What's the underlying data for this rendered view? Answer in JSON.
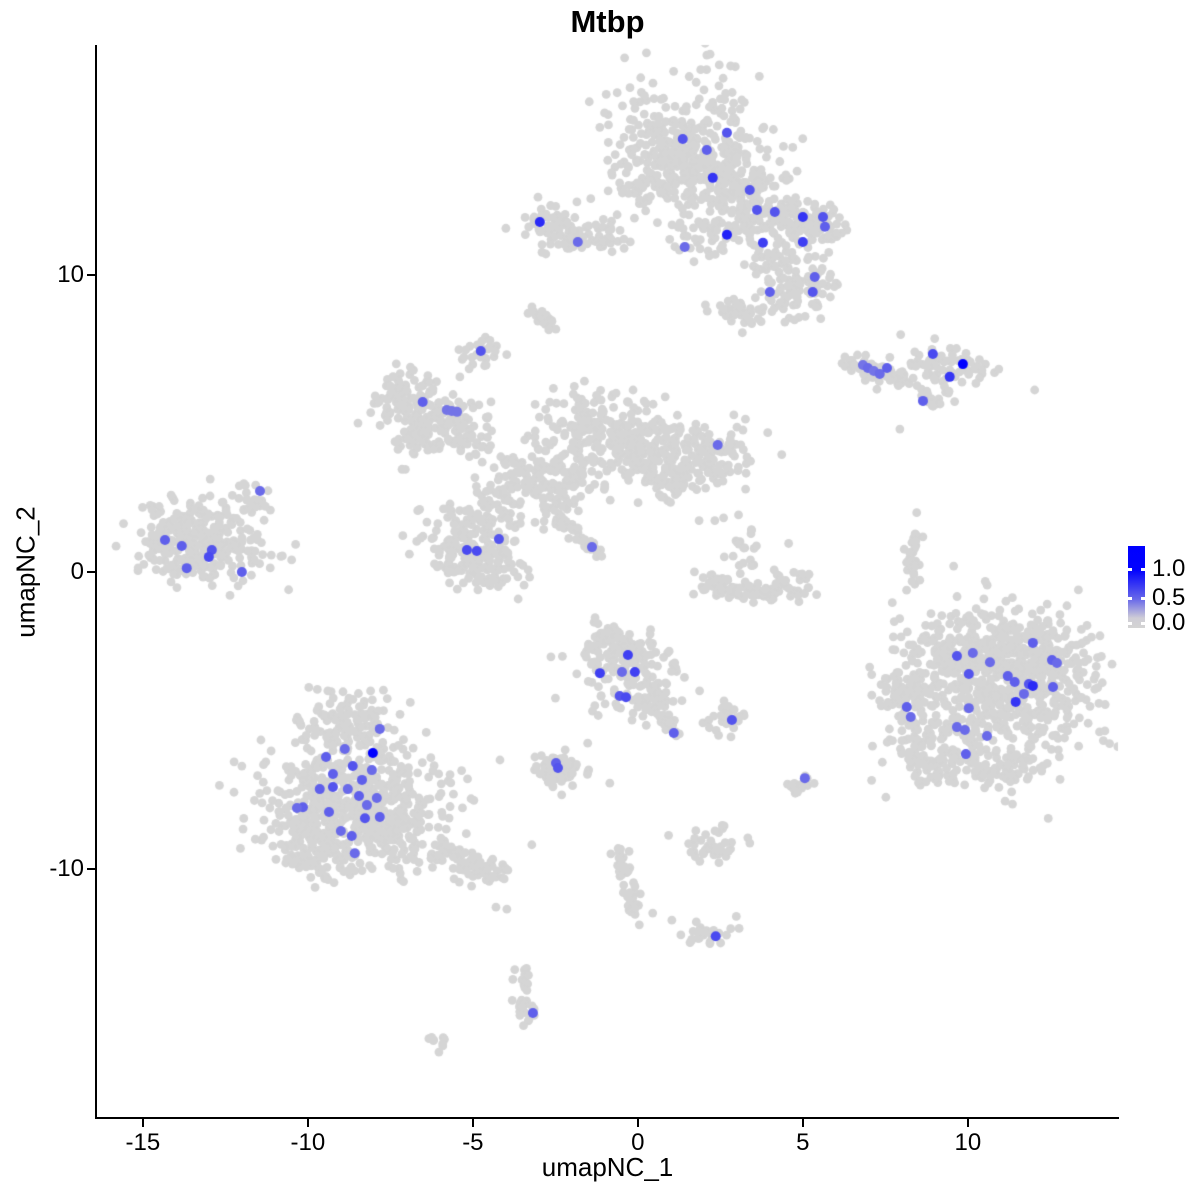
{
  "chart_data": {
    "type": "scatter",
    "title": "Mtbp",
    "xlabel": "umapNC_1",
    "ylabel": "umapNC_2",
    "xlim": [
      -16.39,
      14.55
    ],
    "ylim": [
      -18.41,
      17.77
    ],
    "xticks": [
      -15,
      -10,
      -5,
      0,
      5,
      10
    ],
    "yticks": [
      10,
      0,
      -10
    ],
    "grid": false,
    "legend": {
      "labels": [
        "1.0",
        "0.5",
        "0.0"
      ],
      "position": "right"
    },
    "colors": {
      "low": "#d3d3d3",
      "high": "#0000ff",
      "point_gray": "#d5d5d5"
    },
    "clusters": [
      {
        "name": "top-center",
        "blobs": [
          [
            "g",
            1.52,
            14.4,
            1.15,
            1.25,
            330
          ],
          [
            "g",
            0.55,
            13.25,
            0.55,
            0.5,
            60
          ],
          [
            "g",
            2.6,
            13.3,
            0.75,
            0.65,
            120
          ],
          [
            "g",
            1.95,
            11.4,
            0.5,
            0.35,
            40
          ],
          [
            "g",
            3.75,
            12.15,
            0.65,
            0.45,
            70
          ],
          [
            "g",
            4.9,
            11.9,
            0.55,
            0.45,
            70
          ],
          [
            "g",
            5.75,
            11.65,
            0.35,
            0.3,
            30
          ],
          [
            "g",
            4.15,
            10.45,
            0.5,
            0.45,
            55
          ],
          [
            "g",
            5.2,
            9.75,
            0.45,
            0.4,
            45
          ],
          [
            "g",
            4.6,
            9.15,
            0.4,
            0.35,
            35
          ],
          [
            "g",
            3.25,
            8.75,
            0.4,
            0.3,
            40
          ]
        ]
      },
      {
        "name": "top-left-small",
        "blobs": [
          [
            "g",
            -2.6,
            11.8,
            0.45,
            0.35,
            55
          ],
          [
            "g",
            -1.55,
            11.3,
            0.55,
            0.3,
            45
          ],
          [
            "g",
            -0.9,
            11.15,
            0.25,
            0.18,
            12
          ]
        ]
      },
      {
        "name": "comma-small",
        "blobs": [
          [
            "s",
            -2.88,
            8.55,
            0.28,
            -0.22,
            0.12,
            22
          ]
        ]
      },
      {
        "name": "tiny-left",
        "blobs": [
          [
            "g",
            -4.72,
            7.4,
            0.28,
            0.26,
            26
          ]
        ]
      },
      {
        "name": "mid-left",
        "blobs": [
          [
            "g",
            -6.95,
            5.8,
            0.55,
            0.5,
            85
          ],
          [
            "g",
            -5.9,
            5.15,
            0.65,
            0.5,
            100
          ],
          [
            "g",
            -6.6,
            4.5,
            0.4,
            0.35,
            35
          ],
          [
            "g",
            -5.15,
            4.35,
            0.3,
            0.25,
            18
          ]
        ]
      },
      {
        "name": "central-web",
        "blobs": [
          [
            "g",
            -1.15,
            4.95,
            0.85,
            0.7,
            150
          ],
          [
            "g",
            0.05,
            4.1,
            0.75,
            0.6,
            130
          ],
          [
            "g",
            1.9,
            3.95,
            0.8,
            0.55,
            125
          ],
          [
            "g",
            1.0,
            3.1,
            0.5,
            0.45,
            55
          ],
          [
            "g",
            -2.8,
            3.45,
            0.6,
            0.5,
            65
          ],
          [
            "g",
            -3.9,
            2.6,
            0.55,
            0.5,
            65
          ],
          [
            "g",
            -5.25,
            1.1,
            0.7,
            0.72,
            160
          ],
          [
            "g",
            -4.35,
            0.1,
            0.5,
            0.45,
            65
          ],
          [
            "g",
            -2.5,
            2.45,
            0.4,
            0.4,
            35
          ],
          [
            "g",
            -1.7,
            3.4,
            0.5,
            0.45,
            35
          ]
        ]
      },
      {
        "name": "diag-streak",
        "blobs": [
          [
            "s",
            -1.82,
            1.22,
            0.62,
            -0.58,
            0.1,
            40
          ]
        ]
      },
      {
        "name": "far-left",
        "blobs": [
          [
            "g",
            -13.4,
            1.6,
            0.85,
            0.55,
            110
          ],
          [
            "g",
            -12.55,
            0.6,
            0.95,
            0.5,
            120
          ],
          [
            "g",
            -13.75,
            0.4,
            0.5,
            0.4,
            45
          ],
          [
            "g",
            -11.65,
            2.4,
            0.38,
            0.32,
            25
          ],
          [
            "g",
            -14.45,
            0.9,
            0.33,
            0.3,
            22
          ]
        ]
      },
      {
        "name": "curl",
        "blobs": [
          [
            "g",
            2.35,
            -0.45,
            0.33,
            0.22,
            30
          ],
          [
            "s",
            3.55,
            -0.68,
            0.6,
            -0.1,
            0.15,
            40
          ],
          [
            "g",
            4.75,
            -0.42,
            0.33,
            0.25,
            28
          ],
          [
            "g",
            3.25,
            0.9,
            0.45,
            0.6,
            26
          ]
        ]
      },
      {
        "name": "right-sliver",
        "blobs": [
          [
            "s",
            8.3,
            0.45,
            0.05,
            1.05,
            0.1,
            32
          ]
        ]
      },
      {
        "name": "right-mid",
        "blobs": [
          [
            "s",
            7.2,
            6.8,
            0.85,
            -0.3,
            0.14,
            55
          ],
          [
            "g",
            9.15,
            6.85,
            0.85,
            0.38,
            85
          ],
          [
            "s",
            8.8,
            5.9,
            0.3,
            -0.28,
            0.1,
            18
          ]
        ]
      },
      {
        "name": "big-right",
        "blobs": [
          [
            "g",
            10.95,
            -4.0,
            1.5,
            1.45,
            520
          ],
          [
            "g",
            12.15,
            -2.95,
            0.95,
            0.85,
            180
          ],
          [
            "g",
            9.75,
            -2.65,
            0.75,
            0.65,
            130
          ],
          [
            "g",
            8.4,
            -5.0,
            0.45,
            0.85,
            80
          ],
          [
            "g",
            9.0,
            -6.35,
            0.5,
            0.45,
            55
          ],
          [
            "g",
            7.95,
            -4.0,
            0.38,
            0.4,
            30
          ],
          [
            "g",
            10.95,
            -6.7,
            0.75,
            0.38,
            60
          ]
        ]
      },
      {
        "name": "center-bottom",
        "blobs": [
          [
            "g",
            -0.4,
            -3.15,
            0.7,
            0.7,
            150
          ],
          [
            "g",
            0.5,
            -4.3,
            0.48,
            0.38,
            55
          ],
          [
            "s",
            1.0,
            -5.2,
            0.18,
            -0.3,
            0.1,
            20
          ],
          [
            "g",
            -0.85,
            -2.3,
            0.33,
            0.3,
            30
          ]
        ]
      },
      {
        "name": "small-right-of-center",
        "blobs": [
          [
            "g",
            2.75,
            -4.85,
            0.32,
            0.26,
            26
          ]
        ]
      },
      {
        "name": "small-left-of-center",
        "blobs": [
          [
            "g",
            -2.4,
            -6.7,
            0.45,
            0.38,
            60
          ]
        ]
      },
      {
        "name": "bottom-left",
        "blobs": [
          [
            "g",
            -9.05,
            -5.15,
            0.65,
            0.5,
            80
          ],
          [
            "g",
            -8.6,
            -7.35,
            1.4,
            1.25,
            420
          ],
          [
            "g",
            -9.95,
            -8.35,
            0.75,
            0.75,
            130
          ],
          [
            "g",
            -7.4,
            -8.7,
            0.85,
            0.75,
            140
          ],
          [
            "s",
            -5.1,
            -9.85,
            0.9,
            -0.45,
            0.24,
            80
          ],
          [
            "g",
            -9.65,
            -9.7,
            0.48,
            0.42,
            50
          ]
        ]
      },
      {
        "name": "tiny-bottom-right",
        "blobs": [
          [
            "g",
            4.95,
            -7.15,
            0.26,
            0.24,
            16
          ]
        ]
      },
      {
        "name": "small-bottom-mid",
        "blobs": [
          [
            "g",
            2.2,
            -9.2,
            0.48,
            0.32,
            40
          ]
        ]
      },
      {
        "name": "bottom-chain",
        "blobs": [
          [
            "s",
            -0.3,
            -10.55,
            0.3,
            -1.3,
            0.14,
            45
          ]
        ]
      },
      {
        "name": "bottom-blob",
        "blobs": [
          [
            "g",
            2.15,
            -12.25,
            0.42,
            0.22,
            26
          ]
        ]
      },
      {
        "name": "bottom-s",
        "blobs": [
          [
            "s",
            -3.45,
            -14.25,
            0.1,
            -0.85,
            0.14,
            34
          ]
        ]
      },
      {
        "name": "bottom-comma",
        "blobs": [
          [
            "g",
            -6.05,
            -15.85,
            0.18,
            0.13,
            9
          ]
        ]
      }
    ],
    "extra_points": [
      [
        -1.52,
        -5.77
      ],
      [
        -0.85,
        -7.12
      ],
      [
        4.67,
        -7.18
      ],
      [
        -4.3,
        -11.3
      ],
      [
        -3.97,
        -11.37
      ],
      [
        7.94,
        4.82
      ],
      [
        0.45,
        -11.5
      ],
      [
        1.03,
        -11.74
      ],
      [
        -2.79,
        4.38
      ],
      [
        8.45,
        2.0
      ]
    ],
    "highlights": [
      [
        1.36,
        14.6,
        0.6
      ],
      [
        2.7,
        14.81,
        0.6
      ],
      [
        2.09,
        14.23,
        0.55
      ],
      [
        2.27,
        13.29,
        0.75
      ],
      [
        3.39,
        12.88,
        0.6
      ],
      [
        3.61,
        12.21,
        0.6
      ],
      [
        4.15,
        12.14,
        0.6
      ],
      [
        5.0,
        11.97,
        0.75
      ],
      [
        5.61,
        11.97,
        0.6
      ],
      [
        5.67,
        11.64,
        0.55
      ],
      [
        5.0,
        11.13,
        0.7
      ],
      [
        3.79,
        11.1,
        0.7
      ],
      [
        2.7,
        11.37,
        0.85
      ],
      [
        1.42,
        10.96,
        0.5
      ],
      [
        4.0,
        9.44,
        0.55
      ],
      [
        5.3,
        9.44,
        0.6
      ],
      [
        5.36,
        9.95,
        0.55
      ],
      [
        -1.82,
        11.13,
        0.5
      ],
      [
        -2.97,
        11.8,
        0.8
      ],
      [
        -4.76,
        7.45,
        0.6
      ],
      [
        -6.52,
        5.73,
        0.55
      ],
      [
        -5.79,
        5.46,
        0.45
      ],
      [
        -5.64,
        5.43,
        0.45
      ],
      [
        -5.48,
        5.4,
        0.45
      ],
      [
        6.82,
        6.98,
        0.45
      ],
      [
        6.97,
        6.88,
        0.5
      ],
      [
        7.15,
        6.78,
        0.45
      ],
      [
        7.33,
        6.68,
        0.5
      ],
      [
        7.55,
        6.88,
        0.55
      ],
      [
        8.94,
        7.35,
        0.65
      ],
      [
        9.85,
        7.01,
        1.0
      ],
      [
        9.45,
        6.58,
        0.75
      ],
      [
        8.64,
        5.77,
        0.55
      ],
      [
        -11.45,
        2.73,
        0.5
      ],
      [
        -14.33,
        1.08,
        0.55
      ],
      [
        -13.82,
        0.88,
        0.55
      ],
      [
        -12.91,
        0.74,
        0.6
      ],
      [
        -13.0,
        0.51,
        0.65
      ],
      [
        -13.67,
        0.13,
        0.55
      ],
      [
        -12.0,
        0.0,
        0.55
      ],
      [
        -4.21,
        1.11,
        0.6
      ],
      [
        -5.18,
        0.74,
        0.65
      ],
      [
        -4.88,
        0.71,
        0.65
      ],
      [
        -1.39,
        0.84,
        0.5
      ],
      [
        2.42,
        4.28,
        0.5
      ],
      [
        -0.3,
        -2.8,
        0.7
      ],
      [
        -1.15,
        -3.41,
        0.7
      ],
      [
        -0.48,
        -3.37,
        0.5
      ],
      [
        -0.09,
        -3.37,
        0.7
      ],
      [
        -0.55,
        -4.18,
        0.6
      ],
      [
        -0.36,
        -4.22,
        0.65
      ],
      [
        1.09,
        -5.43,
        0.55
      ],
      [
        2.85,
        -4.99,
        0.6
      ],
      [
        -2.48,
        -6.44,
        0.55
      ],
      [
        -2.42,
        -6.61,
        0.6
      ],
      [
        5.06,
        -6.95,
        0.5
      ],
      [
        11.97,
        -2.39,
        0.55
      ],
      [
        9.67,
        -2.83,
        0.6
      ],
      [
        10.15,
        -2.73,
        0.5
      ],
      [
        10.67,
        -3.04,
        0.5
      ],
      [
        12.55,
        -2.97,
        0.55
      ],
      [
        12.7,
        -3.07,
        0.5
      ],
      [
        10.03,
        -3.44,
        0.6
      ],
      [
        11.21,
        -3.51,
        0.55
      ],
      [
        11.42,
        -3.71,
        0.55
      ],
      [
        11.85,
        -3.78,
        0.6
      ],
      [
        11.97,
        -3.84,
        0.8
      ],
      [
        12.58,
        -3.88,
        0.55
      ],
      [
        11.7,
        -4.11,
        0.5
      ],
      [
        11.45,
        -4.38,
        0.75
      ],
      [
        10.03,
        -4.59,
        0.5
      ],
      [
        8.15,
        -4.55,
        0.55
      ],
      [
        8.27,
        -4.89,
        0.5
      ],
      [
        9.67,
        -5.23,
        0.5
      ],
      [
        9.91,
        -5.33,
        0.5
      ],
      [
        10.58,
        -5.53,
        0.5
      ],
      [
        9.94,
        -6.14,
        0.55
      ],
      [
        -7.82,
        -5.29,
        0.5
      ],
      [
        -8.88,
        -5.97,
        0.5
      ],
      [
        -9.45,
        -6.24,
        0.55
      ],
      [
        -8.03,
        -6.1,
        1.0
      ],
      [
        -8.64,
        -6.54,
        0.6
      ],
      [
        -9.24,
        -6.81,
        0.55
      ],
      [
        -8.06,
        -6.68,
        0.5
      ],
      [
        -8.36,
        -7.01,
        0.55
      ],
      [
        -9.24,
        -7.25,
        0.6
      ],
      [
        -9.64,
        -7.32,
        0.55
      ],
      [
        -8.79,
        -7.32,
        0.5
      ],
      [
        -10.15,
        -7.93,
        0.55
      ],
      [
        -10.33,
        -7.96,
        0.5
      ],
      [
        -9.36,
        -8.09,
        0.55
      ],
      [
        -8.45,
        -7.55,
        0.55
      ],
      [
        -7.91,
        -7.62,
        0.5
      ],
      [
        -8.21,
        -7.86,
        0.5
      ],
      [
        -7.82,
        -8.26,
        0.55
      ],
      [
        -8.27,
        -8.3,
        0.6
      ],
      [
        -9.0,
        -8.73,
        0.5
      ],
      [
        -8.67,
        -8.9,
        0.55
      ],
      [
        -8.58,
        -9.48,
        0.5
      ],
      [
        2.36,
        -12.28,
        0.65
      ],
      [
        -3.18,
        -14.87,
        0.55
      ]
    ]
  }
}
